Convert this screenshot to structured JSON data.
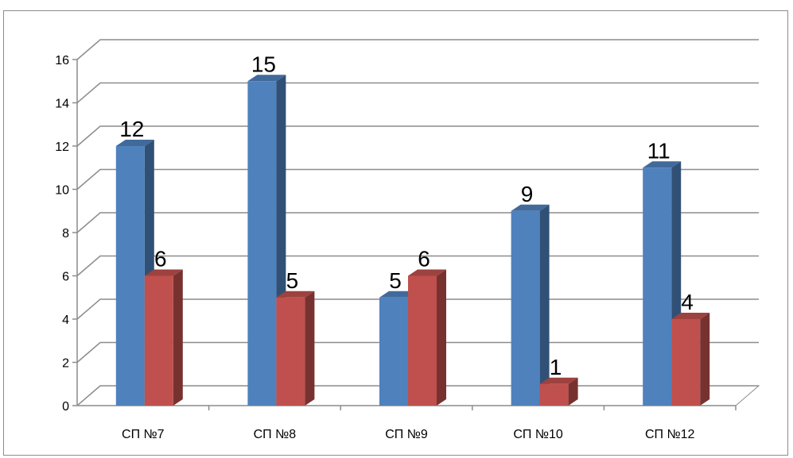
{
  "chart_data": {
    "type": "bar",
    "title": "",
    "xlabel": "",
    "ylabel": "",
    "categories": [
      "СП №7",
      "СП №8",
      "СП №9",
      "СП №10",
      "СП №12"
    ],
    "series": [
      {
        "values": [
          12,
          15,
          5,
          9,
          11
        ],
        "color": "#4f81bd"
      },
      {
        "values": [
          6,
          5,
          6,
          1,
          4
        ],
        "color": "#c0504d"
      }
    ],
    "ylim": [
      0,
      16
    ],
    "yticks": [
      0,
      2,
      4,
      6,
      8,
      10,
      12,
      14,
      16
    ],
    "grid": true,
    "legend": "none",
    "style": "3d-clustered-column",
    "data_labels": true
  }
}
